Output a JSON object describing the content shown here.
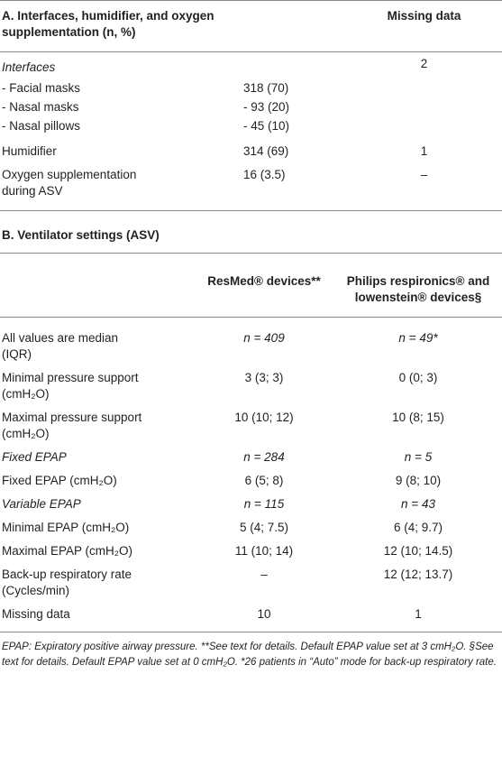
{
  "section_a": {
    "title": "A. Interfaces, humidifier, and oxygen supplementation (n, %)",
    "missing_header": "Missing data",
    "rows": [
      {
        "label": "Interfaces",
        "italic": true,
        "missing": "2"
      },
      {
        "label": "-  Facial masks",
        "value": "318 (70)"
      },
      {
        "label": "-  Nasal masks",
        "value": "- 93 (20)"
      },
      {
        "label": "-  Nasal pillows",
        "value": "- 45 (10)"
      },
      {
        "label": "Humidifier",
        "value": "314 (69)",
        "missing": "1"
      },
      {
        "label": "Oxygen supplementation during ASV",
        "value": "16 (3.5)",
        "missing": "–"
      }
    ]
  },
  "section_b": {
    "title": "B. Ventilator settings (ASV)",
    "headers": [
      "ResMed® devices**",
      "Philips respironics® and lowenstein® devices§"
    ],
    "rows": [
      {
        "label": "All values are median (IQR)",
        "resmed": "n = 409",
        "philips": "n = 49*",
        "italic_values": true
      },
      {
        "label": "Minimal pressure support (cmH₂O)",
        "resmed": "3 (3; 3)",
        "philips": "0 (0; 3)"
      },
      {
        "label": "Maximal pressure support (cmH₂O)",
        "resmed": "10 (10; 12)",
        "philips": "10 (8; 15)"
      },
      {
        "label": "Fixed EPAP",
        "resmed": "n = 284",
        "philips": "n = 5",
        "italic": true
      },
      {
        "label": "Fixed EPAP (cmH₂O)",
        "resmed": "6 (5; 8)",
        "philips": "9 (8; 10)"
      },
      {
        "label": "Variable EPAP",
        "resmed": "n = 115",
        "philips": "n = 43",
        "italic": true
      },
      {
        "label": "Minimal EPAP (cmH₂O)",
        "resmed": "5 (4; 7.5)",
        "philips": "6 (4; 9.7)"
      },
      {
        "label": "Maximal EPAP (cmH₂O)",
        "resmed": "11 (10; 14)",
        "philips": "12 (10; 14.5)"
      },
      {
        "label": "Back-up respiratory rate (Cycles/min)",
        "resmed": "–",
        "philips": "12 (12; 13.7)"
      },
      {
        "label": "Missing data",
        "resmed": "10",
        "philips": "1"
      }
    ]
  },
  "footnote": "EPAP: Expiratory positive airway pressure. **See text for details. Default EPAP value set at 3 cmH₂O. §See text for details. Default EPAP value set at 0 cmH₂O. *26 patients in “Auto” mode for back-up respiratory rate."
}
